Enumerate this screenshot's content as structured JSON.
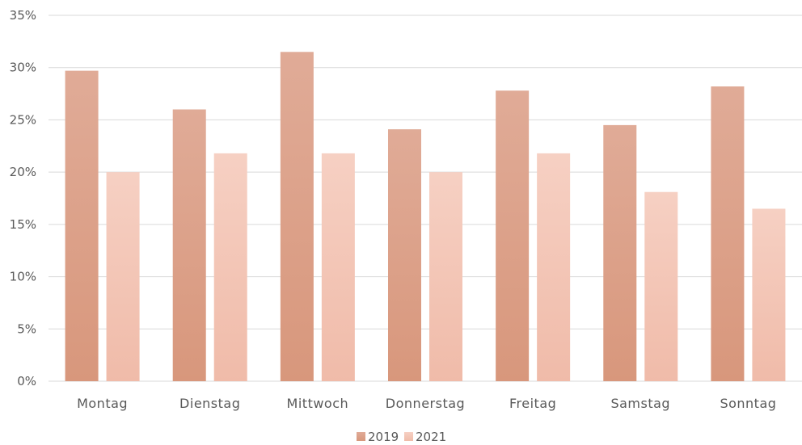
{
  "chart_data": {
    "type": "bar",
    "categories": [
      "Montag",
      "Dienstag",
      "Mittwoch",
      "Donnerstag",
      "Freitag",
      "Samstag",
      "Sonntag"
    ],
    "series": [
      {
        "name": "2019",
        "values": [
          29.7,
          26.0,
          31.5,
          24.1,
          27.8,
          24.5,
          28.2
        ],
        "color_top": "#e0ab97",
        "color_bottom": "#d8977c"
      },
      {
        "name": "2021",
        "values": [
          20.0,
          21.8,
          21.8,
          20.0,
          21.8,
          18.1,
          16.5
        ],
        "color_top": "#f6d0c3",
        "color_bottom": "#f0bba9"
      }
    ],
    "y_ticks": [
      "0%",
      "5%",
      "10%",
      "15%",
      "20%",
      "25%",
      "30%",
      "35%"
    ],
    "ylim": [
      0,
      35
    ],
    "grid": true,
    "grid_color": "#d9d9d9",
    "legend_position": "bottom-center",
    "title": "",
    "xlabel": "",
    "ylabel": ""
  }
}
